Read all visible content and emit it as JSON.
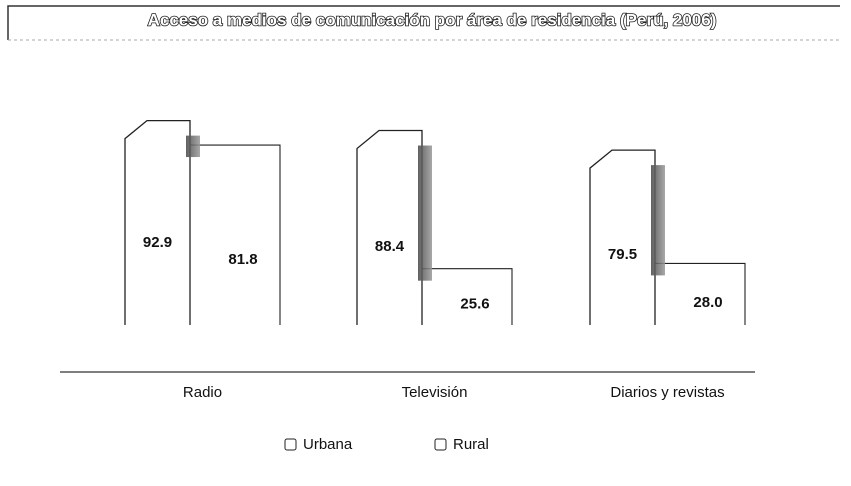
{
  "chart_data": {
    "type": "bar",
    "title": "Acceso a medios de comunicación por área de residencia (Perú, 2006)",
    "categories": [
      "Radio",
      "Televisión",
      "Diarios y revistas"
    ],
    "series": [
      {
        "name": "Urbana",
        "color": "#ffffff",
        "values": [
          92.9,
          88.4,
          79.5
        ]
      },
      {
        "name": "Rural",
        "color": "#ffffff",
        "values": [
          81.8,
          25.6,
          28
        ],
        "value_labels": [
          "81.8",
          "25.6",
          "28.0"
        ]
      }
    ]
  }
}
